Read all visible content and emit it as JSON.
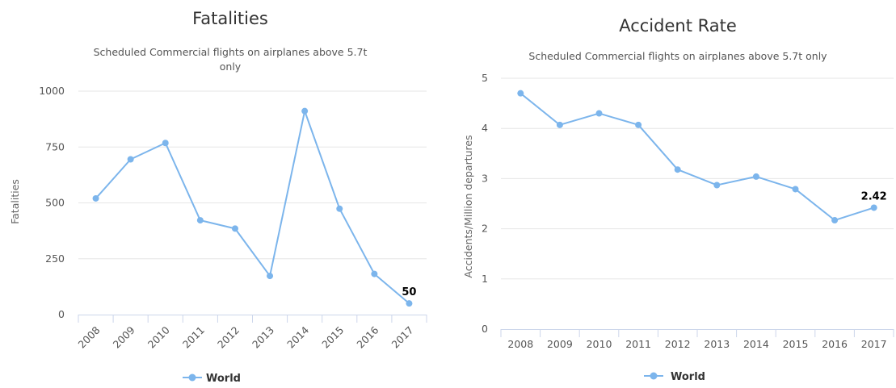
{
  "chart_data": [
    {
      "type": "line",
      "title": "Fatalities",
      "subtitle": "Scheduled Commercial flights on airplanes above 5.7t only",
      "xlabel": "",
      "ylabel": "Fatalities",
      "categories": [
        "2008",
        "2009",
        "2010",
        "2011",
        "2012",
        "2013",
        "2014",
        "2015",
        "2016",
        "2017"
      ],
      "series": [
        {
          "name": "World",
          "values": [
            520,
            695,
            768,
            422,
            385,
            173,
            911,
            474,
            182,
            50
          ],
          "color": "#7cb5ec"
        }
      ],
      "ylim": [
        0,
        1000
      ],
      "yticks": [
        "0",
        "250",
        "500",
        "750",
        "1000"
      ],
      "data_labels": [
        {
          "index": 9,
          "text": "50"
        }
      ],
      "grid": true,
      "legend": "bottom-center"
    },
    {
      "type": "line",
      "title": "Accident Rate",
      "subtitle": "Scheduled Commercial flights on airplanes above 5.7t only",
      "xlabel": "",
      "ylabel": "Accidents/Million departures",
      "categories": [
        "2008",
        "2009",
        "2010",
        "2011",
        "2012",
        "2013",
        "2014",
        "2015",
        "2016",
        "2017"
      ],
      "series": [
        {
          "name": "World",
          "values": [
            4.7,
            4.07,
            4.3,
            4.07,
            3.18,
            2.87,
            3.04,
            2.79,
            2.17,
            2.42
          ],
          "color": "#7cb5ec"
        }
      ],
      "ylim": [
        0,
        5
      ],
      "yticks": [
        "0",
        "1",
        "2",
        "3",
        "4",
        "5"
      ],
      "data_labels": [
        {
          "index": 9,
          "text": "2.42"
        }
      ],
      "grid": true,
      "legend": "bottom-center"
    }
  ]
}
